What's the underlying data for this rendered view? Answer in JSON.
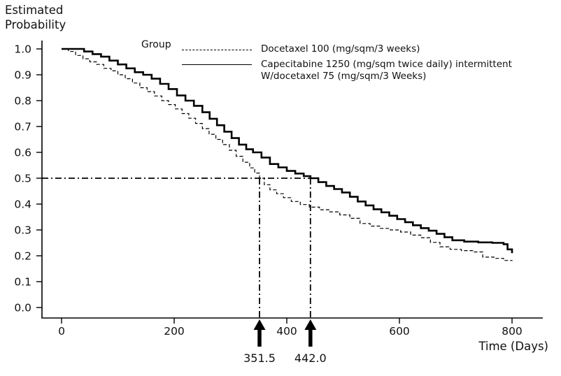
{
  "labels": {
    "y_axis_line1": "Estimated",
    "y_axis_line2": "Probability",
    "x_axis": "Time (Days)"
  },
  "legend": {
    "title": "Group",
    "entries": [
      {
        "style": "dashed",
        "lines": [
          "Docetaxel 100 (mg/sqm/3 weeks)"
        ]
      },
      {
        "style": "solid",
        "lines": [
          "Capecitabine 1250 (mg/sqm twice daily) intermittent",
          "W/docetaxel 75 (mg/sqm/3 Weeks)"
        ]
      }
    ]
  },
  "colors": {
    "line": "#000000",
    "text": "#111111",
    "background": "#ffffff"
  },
  "chart_data": {
    "type": "line",
    "subtype": "kaplan-meier-step-survival",
    "title": "",
    "xlabel": "Time (Days)",
    "ylabel": "Estimated Probability",
    "xlim": [
      0,
      800
    ],
    "ylim": [
      0.0,
      1.0
    ],
    "xticks": [
      0,
      200,
      400,
      600,
      800
    ],
    "xtick_labels": [
      "0",
      "200",
      "400",
      "600",
      "800"
    ],
    "yticks": [
      0.0,
      0.1,
      0.2,
      0.3,
      0.4,
      0.5,
      0.6,
      0.7,
      0.8,
      0.9,
      1.0
    ],
    "ytick_labels": [
      "0.0",
      "0.1",
      "0.2",
      "0.3",
      "0.4",
      "0.5",
      "0.6",
      "0.7",
      "0.8",
      "0.9",
      "1.0"
    ],
    "grid": false,
    "legend_position": "top-inside",
    "series": [
      {
        "name": "Docetaxel 100 (mg/sqm/3 weeks)",
        "line_style": "dashed",
        "points": [
          [
            0,
            1.0
          ],
          [
            12,
            0.99
          ],
          [
            25,
            0.975
          ],
          [
            38,
            0.962
          ],
          [
            50,
            0.95
          ],
          [
            62,
            0.94
          ],
          [
            75,
            0.925
          ],
          [
            88,
            0.915
          ],
          [
            100,
            0.9
          ],
          [
            113,
            0.885
          ],
          [
            126,
            0.868
          ],
          [
            139,
            0.85
          ],
          [
            152,
            0.835
          ],
          [
            165,
            0.818
          ],
          [
            178,
            0.8
          ],
          [
            190,
            0.785
          ],
          [
            202,
            0.768
          ],
          [
            214,
            0.75
          ],
          [
            226,
            0.732
          ],
          [
            238,
            0.712
          ],
          [
            250,
            0.692
          ],
          [
            262,
            0.67
          ],
          [
            274,
            0.65
          ],
          [
            286,
            0.63
          ],
          [
            298,
            0.608
          ],
          [
            310,
            0.585
          ],
          [
            322,
            0.562
          ],
          [
            334,
            0.54
          ],
          [
            343,
            0.52
          ],
          [
            351.5,
            0.5
          ],
          [
            360,
            0.475
          ],
          [
            370,
            0.455
          ],
          [
            382,
            0.44
          ],
          [
            394,
            0.425
          ],
          [
            408,
            0.41
          ],
          [
            424,
            0.398
          ],
          [
            440,
            0.388
          ],
          [
            458,
            0.378
          ],
          [
            476,
            0.37
          ],
          [
            494,
            0.358
          ],
          [
            512,
            0.345
          ],
          [
            530,
            0.325
          ],
          [
            548,
            0.315
          ],
          [
            566,
            0.306
          ],
          [
            584,
            0.3
          ],
          [
            602,
            0.292
          ],
          [
            620,
            0.28
          ],
          [
            638,
            0.27
          ],
          [
            655,
            0.252
          ],
          [
            672,
            0.235
          ],
          [
            690,
            0.225
          ],
          [
            710,
            0.22
          ],
          [
            730,
            0.215
          ],
          [
            748,
            0.195
          ],
          [
            768,
            0.19
          ],
          [
            785,
            0.182
          ],
          [
            800,
            0.18
          ]
        ]
      },
      {
        "name": "Capecitabine 1250 (mg/sqm twice daily) intermittent W/docetaxel 75 (mg/sqm/3 Weeks)",
        "line_style": "solid",
        "points": [
          [
            0,
            1.0
          ],
          [
            25,
            1.0
          ],
          [
            40,
            0.99
          ],
          [
            55,
            0.98
          ],
          [
            70,
            0.97
          ],
          [
            85,
            0.955
          ],
          [
            100,
            0.94
          ],
          [
            115,
            0.925
          ],
          [
            130,
            0.91
          ],
          [
            145,
            0.9
          ],
          [
            160,
            0.885
          ],
          [
            175,
            0.865
          ],
          [
            190,
            0.845
          ],
          [
            205,
            0.82
          ],
          [
            220,
            0.8
          ],
          [
            235,
            0.78
          ],
          [
            250,
            0.755
          ],
          [
            263,
            0.73
          ],
          [
            276,
            0.705
          ],
          [
            289,
            0.68
          ],
          [
            302,
            0.655
          ],
          [
            315,
            0.63
          ],
          [
            328,
            0.612
          ],
          [
            340,
            0.6
          ],
          [
            355,
            0.58
          ],
          [
            370,
            0.555
          ],
          [
            385,
            0.542
          ],
          [
            400,
            0.528
          ],
          [
            415,
            0.518
          ],
          [
            430,
            0.508
          ],
          [
            442,
            0.5
          ],
          [
            456,
            0.485
          ],
          [
            470,
            0.47
          ],
          [
            484,
            0.458
          ],
          [
            498,
            0.445
          ],
          [
            512,
            0.428
          ],
          [
            526,
            0.41
          ],
          [
            540,
            0.395
          ],
          [
            554,
            0.38
          ],
          [
            568,
            0.368
          ],
          [
            582,
            0.355
          ],
          [
            596,
            0.342
          ],
          [
            610,
            0.33
          ],
          [
            624,
            0.318
          ],
          [
            638,
            0.307
          ],
          [
            652,
            0.297
          ],
          [
            666,
            0.285
          ],
          [
            680,
            0.272
          ],
          [
            694,
            0.26
          ],
          [
            715,
            0.255
          ],
          [
            740,
            0.252
          ],
          [
            765,
            0.25
          ],
          [
            785,
            0.245
          ],
          [
            792,
            0.225
          ],
          [
            800,
            0.21
          ]
        ]
      }
    ],
    "reference": {
      "probability": 0.5,
      "medians": [
        {
          "label": "351.5",
          "value": 351.5,
          "series": "Docetaxel 100 (mg/sqm/3 weeks)"
        },
        {
          "label": "442.0",
          "value": 442.0,
          "series": "Capecitabine 1250 W/docetaxel 75"
        }
      ]
    }
  }
}
